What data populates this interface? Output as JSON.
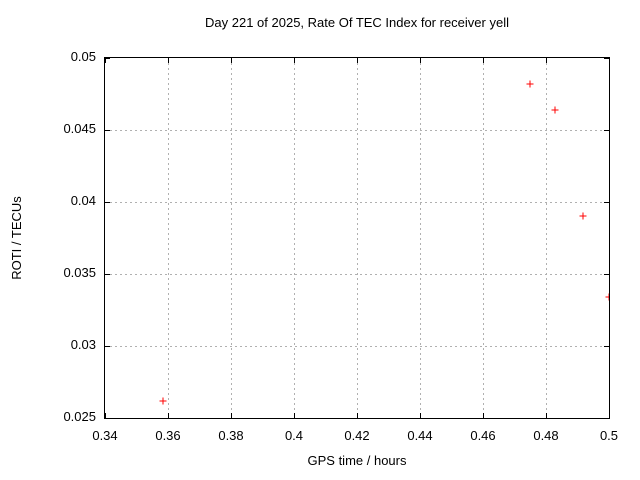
{
  "chart_data": {
    "type": "scatter",
    "title": "Day 221 of 2025, Rate Of TEC Index for receiver yell",
    "xlabel": "GPS time / hours",
    "ylabel": "ROTI / TECUs",
    "xlim": [
      0.34,
      0.5
    ],
    "ylim": [
      0.025,
      0.05
    ],
    "grid": true,
    "legend": "none",
    "x_ticks": [
      {
        "value": 0.34,
        "label": "0.34"
      },
      {
        "value": 0.36,
        "label": "0.36"
      },
      {
        "value": 0.38,
        "label": "0.38"
      },
      {
        "value": 0.4,
        "label": "0.4"
      },
      {
        "value": 0.42,
        "label": "0.42"
      },
      {
        "value": 0.44,
        "label": "0.44"
      },
      {
        "value": 0.46,
        "label": "0.46"
      },
      {
        "value": 0.48,
        "label": "0.48"
      },
      {
        "value": 0.5,
        "label": "0.5"
      }
    ],
    "y_ticks": [
      {
        "value": 0.025,
        "label": "0.025"
      },
      {
        "value": 0.03,
        "label": "0.03"
      },
      {
        "value": 0.035,
        "label": "0.035"
      },
      {
        "value": 0.04,
        "label": "0.04"
      },
      {
        "value": 0.045,
        "label": "0.045"
      },
      {
        "value": 0.05,
        "label": "0.05"
      }
    ],
    "series": [
      {
        "name": "",
        "marker": "plus",
        "color": "#ff0000",
        "points": [
          [
            0.3585,
            0.0262
          ],
          [
            0.4748,
            0.0482
          ],
          [
            0.483,
            0.0464
          ],
          [
            0.4916,
            0.039
          ],
          [
            0.5,
            0.0334
          ]
        ]
      }
    ],
    "colors": {
      "border": "#000000",
      "grid": "#b0b0b0",
      "text": "#000000",
      "background": "#ffffff"
    }
  }
}
